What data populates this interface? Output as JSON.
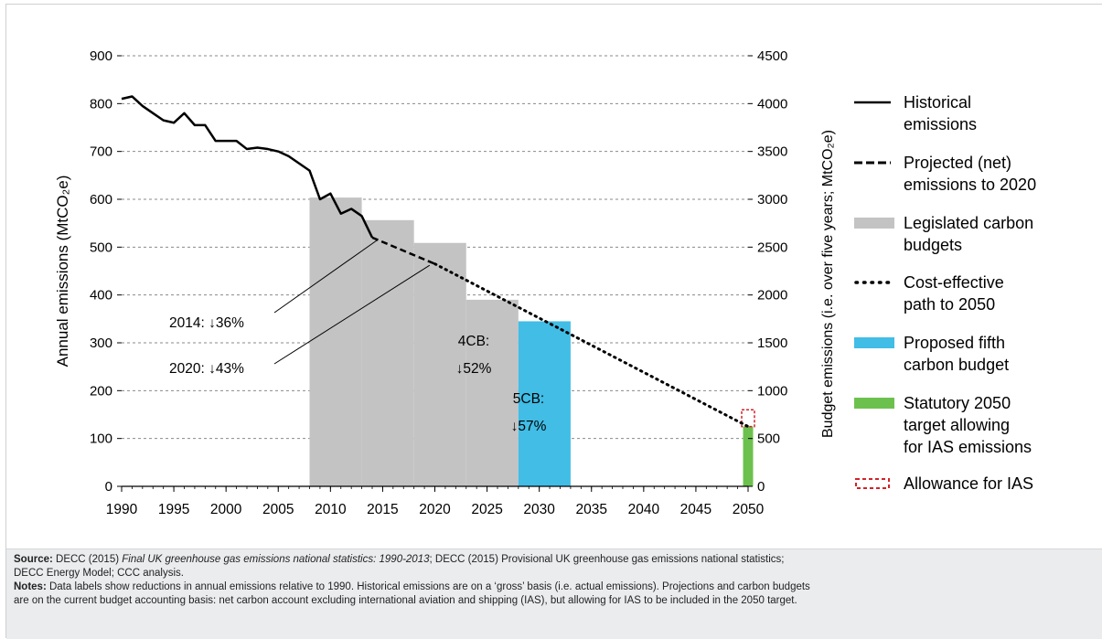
{
  "chart_data": {
    "type": "line",
    "x_axis": {
      "min": 1990,
      "max": 2050,
      "ticks": [
        1990,
        1995,
        2000,
        2005,
        2010,
        2015,
        2020,
        2025,
        2030,
        2035,
        2040,
        2045,
        2050
      ]
    },
    "y_left": {
      "label": "Annual emissions (MtCO₂e)",
      "min": 0,
      "max": 900,
      "ticks": [
        0,
        100,
        200,
        300,
        400,
        500,
        600,
        700,
        800,
        900
      ]
    },
    "y_right": {
      "label": "Budget emissions (i.e. over five years; MtCO₂e)",
      "min": 0,
      "max": 4500,
      "ticks": [
        0,
        500,
        1000,
        1500,
        2000,
        2500,
        3000,
        3500,
        4000,
        4500
      ]
    },
    "grid": "horizontal dashed",
    "legend_position": "right",
    "historical": {
      "x": [
        1990,
        1991,
        1992,
        1993,
        1994,
        1995,
        1996,
        1997,
        1998,
        1999,
        2000,
        2001,
        2002,
        2003,
        2004,
        2005,
        2006,
        2007,
        2008,
        2009,
        2010,
        2011,
        2012,
        2013,
        2014
      ],
      "y": [
        810,
        815,
        795,
        780,
        765,
        760,
        780,
        755,
        755,
        722,
        722,
        722,
        705,
        708,
        705,
        700,
        690,
        675,
        660,
        600,
        612,
        570,
        580,
        565,
        520
      ]
    },
    "projected": {
      "x": [
        2014,
        2020
      ],
      "y": [
        520,
        465
      ]
    },
    "cost_effective": {
      "x": [
        2020,
        2050
      ],
      "y": [
        465,
        125
      ]
    },
    "budgets": [
      {
        "start": 2008,
        "end": 2012,
        "value": 3018,
        "kind": "legislated"
      },
      {
        "start": 2013,
        "end": 2017,
        "value": 2782,
        "kind": "legislated"
      },
      {
        "start": 2018,
        "end": 2022,
        "value": 2544,
        "kind": "legislated"
      },
      {
        "start": 2023,
        "end": 2027,
        "value": 1950,
        "kind": "legislated"
      },
      {
        "start": 2028,
        "end": 2032,
        "value": 1725,
        "kind": "proposed"
      }
    ],
    "target_2050": {
      "year": 2050,
      "value": 125
    },
    "ias_allowance": {
      "year": 2050,
      "from": 125,
      "to": 160
    },
    "annotations": [
      {
        "text": "2014: ↓36%",
        "x": 2014.5,
        "y": 515
      },
      {
        "text": "2020: ↓43%",
        "x": 2019.5,
        "y": 462
      },
      {
        "text": "4CB:",
        "text2": "↓52%"
      },
      {
        "text": "5CB:",
        "text2": "↓57%"
      }
    ],
    "legend": [
      {
        "kind": "solid",
        "lines": [
          "Historical",
          "emissions"
        ]
      },
      {
        "kind": "dashed",
        "lines": [
          "Projected (net)",
          "emissions to 2020"
        ]
      },
      {
        "kind": "grey",
        "lines": [
          "Legislated carbon",
          "budgets"
        ]
      },
      {
        "kind": "dotted",
        "lines": [
          "Cost-effective",
          "path to 2050"
        ]
      },
      {
        "kind": "blue",
        "lines": [
          "Proposed fifth",
          "carbon budget"
        ]
      },
      {
        "kind": "green",
        "lines": [
          "Statutory 2050",
          "target allowing",
          "for IAS emissions"
        ]
      },
      {
        "kind": "ias",
        "lines": [
          "Allowance for IAS"
        ]
      }
    ],
    "colors": {
      "legislated": "#c3c3c3",
      "proposed": "#41bde6",
      "target": "#6cc14e",
      "ias": "#d0232a",
      "line": "#000000",
      "grid": "#8a8a8a"
    }
  },
  "footer": {
    "source_label": "Source:",
    "source_a": " DECC (2015) ",
    "source_italic": "Final UK greenhouse gas emissions national statistics: 1990-2013",
    "source_b": "; DECC (2015) Provisional UK greenhouse gas emissions national statistics;",
    "source_line2": "DECC Energy Model; CCC analysis.",
    "notes_label": "Notes:",
    "notes_line1": " Data labels show reductions in annual emissions relative to 1990. Historical emissions are on a ‘gross’ basis (i.e. actual emissions). Projections and carbon budgets",
    "notes_line2": "are on the current budget accounting basis: net carbon account excluding international aviation and shipping (IAS), but allowing for IAS to be included in the 2050 target."
  }
}
